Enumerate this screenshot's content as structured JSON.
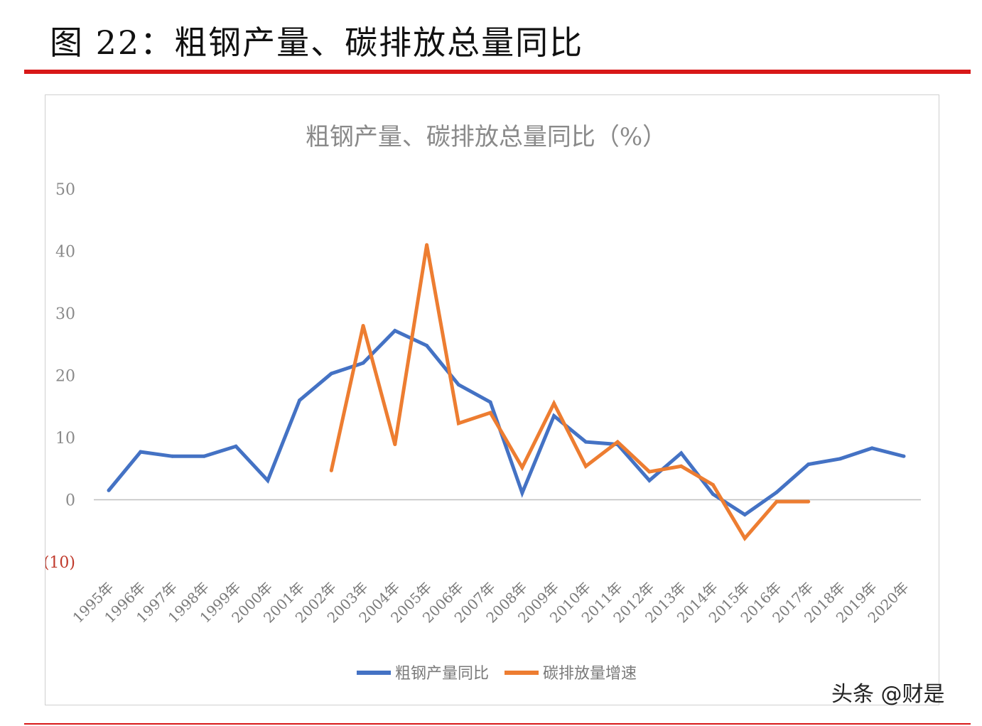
{
  "figure": {
    "title": "图 22：粗钢产量、碳排放总量同比"
  },
  "watermark": "头条 @财是",
  "colors": {
    "steel": "#4472C4",
    "carbon": "#ED7D31",
    "axis": "#bfbfbf",
    "rule": "#d81818",
    "negative_tick": "#c0392b"
  },
  "chart_data": {
    "type": "line",
    "title": "粗钢产量、碳排放总量同比（%）",
    "categories": [
      "1995年",
      "1996年",
      "1997年",
      "1998年",
      "1999年",
      "2000年",
      "2001年",
      "2002年",
      "2003年",
      "2004年",
      "2005年",
      "2006年",
      "2007年",
      "2008年",
      "2009年",
      "2010年",
      "2011年",
      "2012年",
      "2013年",
      "2014年",
      "2015年",
      "2016年",
      "2017年",
      "2018年",
      "2019年",
      "2020年"
    ],
    "y_ticks": [
      {
        "value": 50,
        "label": "50"
      },
      {
        "value": 40,
        "label": "40"
      },
      {
        "value": 30,
        "label": "30"
      },
      {
        "value": 20,
        "label": "20"
      },
      {
        "value": 10,
        "label": "10"
      },
      {
        "value": 0,
        "label": "0"
      },
      {
        "value": -10,
        "label": "(10)"
      }
    ],
    "ylim": [
      -10,
      50
    ],
    "grid": false,
    "legend_position": "bottom",
    "series": [
      {
        "name": "粗钢产量同比",
        "color": "#4472C4",
        "values": [
          1.5,
          7.7,
          7.0,
          7.0,
          8.6,
          3.1,
          16.0,
          20.3,
          22.0,
          27.2,
          24.8,
          18.5,
          15.7,
          1.1,
          13.5,
          9.3,
          8.9,
          3.1,
          7.5,
          0.9,
          -2.4,
          1.2,
          5.7,
          6.6,
          8.3,
          7.0
        ]
      },
      {
        "name": "碳排放量增速",
        "color": "#ED7D31",
        "values": [
          null,
          null,
          null,
          null,
          null,
          null,
          null,
          4.7,
          28.0,
          8.9,
          41.0,
          12.3,
          14.0,
          5.2,
          15.5,
          5.4,
          9.3,
          4.5,
          5.4,
          2.4,
          -6.2,
          -0.3,
          -0.3,
          null,
          null,
          null
        ]
      }
    ]
  }
}
